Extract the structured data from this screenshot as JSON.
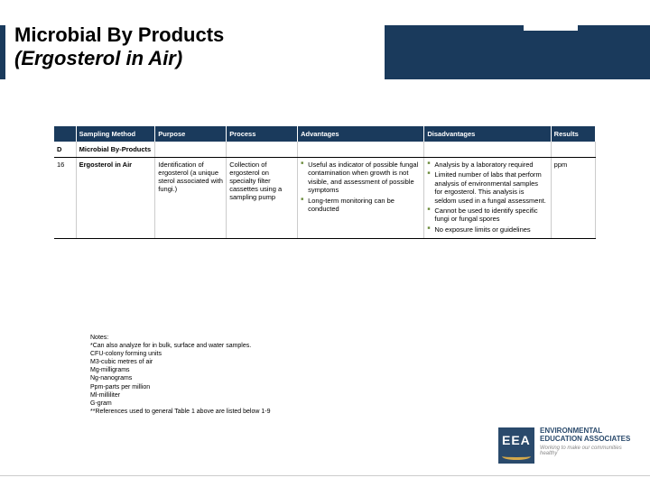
{
  "title_line1": "Microbial By Products",
  "title_line2": "(Ergosterol in Air)",
  "headers": {
    "c1": "",
    "c2": "Sampling Method",
    "c3": "Purpose",
    "c4": "Process",
    "c5": "Advantages",
    "c6": "Disadvantages",
    "c7": "Results"
  },
  "section": {
    "id": "D",
    "label": "Microbial By-Products"
  },
  "row": {
    "id": "16",
    "method": "Ergosterol in Air",
    "purpose": "Identification of ergosterol (a unique sterol associated with fungi.)",
    "process": "Collection of ergosterol on specialty filter cassettes using a sampling pump",
    "adv1": "Useful as indicator of possible fungal contamination when growth is not visible, and assessment of possible symptoms",
    "adv2": "Long-term monitoring can be conducted",
    "dis1": "Analysis by a laboratory required",
    "dis2": "Limited number of labs that perform analysis of environmental samples for ergosterol. This analysis is seldom used in a fungal assessment.",
    "dis3": "Cannot be used to identify specific fungi or fungal spores",
    "dis4": "No exposure limits or guidelines",
    "results": "ppm"
  },
  "notes": {
    "n0": "Notes:",
    "n1": "*Can also analyze for in bulk, surface and water samples.",
    "n2": "CFU-colony forming units",
    "n3": "M3-cubic metres of air",
    "n4": "Mg-milligrams",
    "n5": "Ng-nanograms",
    "n6": "Ppm-parts per million",
    "n7": "Ml-milliliter",
    "n8": "G-gram",
    "n9": "**References used to general Table 1 above are listed below 1-9"
  },
  "logo": {
    "abbr": "EEA",
    "line1": "ENVIRONMENTAL",
    "line2": "EDUCATION ASSOCIATES",
    "tag": "Working to make our communities healthy"
  },
  "colors": {
    "header_bg": "#1a3a5c",
    "bullet": "#6a8a3a",
    "logo_bg": "#2a4a6c",
    "swoosh": "#d4a84a"
  }
}
